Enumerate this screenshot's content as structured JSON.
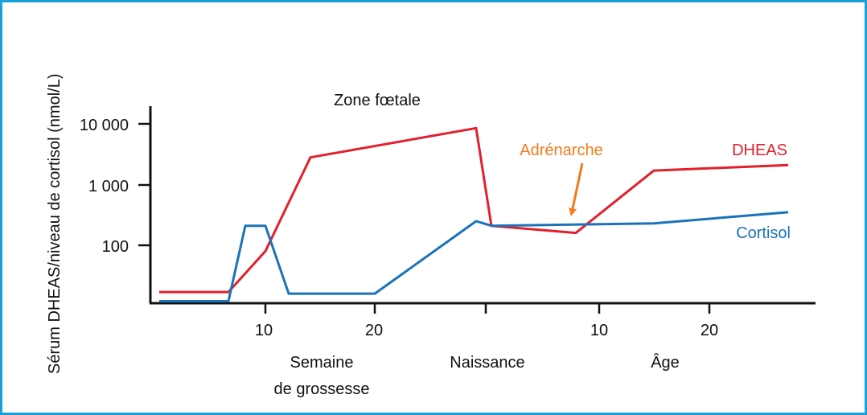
{
  "chart_data": {
    "type": "line",
    "ylabel": "Sérum DHEAS/niveau de cortisol (nmol/L)",
    "yscale": "log",
    "y_ticks": [
      {
        "value": 10000,
        "label": "10 000"
      },
      {
        "value": 1000,
        "label": "1 000"
      },
      {
        "value": 100,
        "label": "100"
      }
    ],
    "x_ticks": [
      "10",
      "20",
      "",
      "10",
      "20"
    ],
    "x_group_labels": {
      "pregnancy": [
        "Semaine",
        "de grossesse"
      ],
      "birth": "Naissance",
      "age": "Âge"
    },
    "annotations": {
      "fetal_zone": "Zone fœtale",
      "adrenarche": "Adrénarche"
    },
    "series": [
      {
        "name": "DHEAS",
        "color": "#e2202c",
        "x": [
          "début",
          "semaine 8",
          "semaine 10",
          "semaine 12",
          "semaine 30",
          "naissance",
          "âge 9",
          "âge 15",
          "âge 30"
        ],
        "values": [
          17,
          17,
          80,
          2800,
          8500,
          210,
          160,
          1700,
          2100
        ]
      },
      {
        "name": "Cortisol",
        "color": "#1a73b8",
        "x": [
          "début",
          "semaine 8",
          "semaine 8.5",
          "semaine 10",
          "semaine 11",
          "semaine 20",
          "semaine 30",
          "naissance",
          "âge 15",
          "âge 30"
        ],
        "values": [
          12,
          12,
          210,
          210,
          16,
          16,
          250,
          210,
          230,
          350
        ]
      }
    ],
    "colors": {
      "frame": "#1aa0d8",
      "axis": "#111111",
      "adrenarche": "#f07c1c"
    }
  }
}
